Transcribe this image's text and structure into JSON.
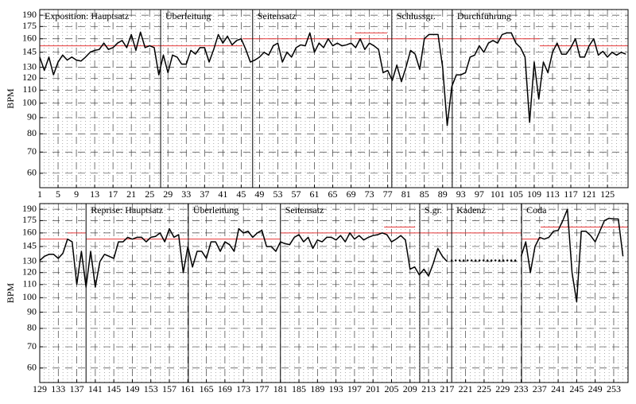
{
  "chart_data": [
    {
      "type": "line",
      "ylabel": "BPM",
      "log_scale": true,
      "grid": true,
      "xlim": [
        1,
        129.5
      ],
      "ylim": [
        54,
        198
      ],
      "xticks": [
        1,
        5,
        9,
        13,
        17,
        21,
        25,
        29,
        33,
        37,
        41,
        45,
        49,
        53,
        57,
        61,
        65,
        69,
        73,
        77,
        81,
        85,
        89,
        93,
        97,
        101,
        105,
        109,
        113,
        117,
        121,
        125
      ],
      "yticks": [
        60,
        70,
        80,
        90,
        100,
        110,
        120,
        130,
        145,
        160,
        175,
        190
      ],
      "sections": [
        {
          "label": "Exposition: Hauptsatz",
          "x": 1
        },
        {
          "label": "Überleitung",
          "x": 27.4
        },
        {
          "label": "Seitensatz",
          "x": 47.5
        },
        {
          "label": "Schlussgr.",
          "x": 77.9
        },
        {
          "label": "Durchführung",
          "x": 91.1
        }
      ],
      "reference_lines": {
        "color": "#e8393a",
        "segments": [
          {
            "x": [
              1,
              45.3
            ],
            "value": 152
          },
          {
            "x": [
              45.3,
              77.9
            ],
            "value": 160
          },
          {
            "x": [
              69.9,
              76.9
            ],
            "value": 167
          },
          {
            "x": [
              77.9,
              110.2
            ],
            "value": 160
          },
          {
            "x": [
              110.2,
              129.5
            ],
            "value": 152
          }
        ]
      },
      "series": [
        {
          "color": "#000000",
          "style": "solid",
          "x": [
            1,
            2,
            3,
            4,
            5,
            6,
            7,
            8,
            9,
            10,
            11,
            12,
            13,
            14,
            15,
            16,
            17,
            18,
            19,
            20,
            21,
            22,
            23,
            24,
            25,
            26,
            27,
            28,
            29,
            30,
            31,
            32,
            33,
            34,
            35,
            36,
            37,
            38,
            39,
            40,
            41,
            42,
            43,
            44,
            45,
            46,
            47,
            48,
            49,
            50,
            51,
            52,
            53,
            54,
            55,
            56,
            57,
            58,
            59,
            60,
            61,
            62,
            63,
            64,
            65,
            66,
            67,
            68,
            69,
            70,
            71,
            72,
            73,
            74,
            75,
            76,
            77,
            78,
            79,
            80,
            81,
            82,
            83,
            84,
            85,
            86,
            87,
            88,
            89,
            90,
            91,
            92,
            93,
            94,
            95,
            96,
            97,
            98,
            99,
            100,
            101,
            102,
            103,
            104,
            105,
            106,
            107,
            108,
            109,
            110,
            111,
            112,
            113,
            114,
            115,
            116,
            117,
            118,
            119,
            120,
            121,
            122,
            123,
            124,
            125,
            126,
            127,
            128,
            129
          ],
          "values": [
            140,
            127,
            140,
            123,
            135,
            142,
            137,
            140,
            137,
            136,
            140,
            145,
            147,
            148,
            155,
            148,
            150,
            155,
            158,
            150,
            165,
            147,
            168,
            150,
            152,
            150,
            123,
            142,
            125,
            142,
            140,
            133,
            133,
            147,
            143,
            150,
            150,
            135,
            148,
            165,
            155,
            163,
            153,
            158,
            160,
            148,
            135,
            137,
            140,
            145,
            142,
            152,
            155,
            135,
            145,
            140,
            150,
            153,
            152,
            167,
            145,
            155,
            150,
            160,
            152,
            155,
            152,
            153,
            155,
            150,
            160,
            148,
            155,
            152,
            148,
            125,
            127,
            118,
            132,
            117,
            130,
            147,
            143,
            128,
            160,
            165,
            165,
            165,
            130,
            85,
            113,
            123,
            123,
            125,
            140,
            142,
            152,
            145,
            155,
            158,
            155,
            165,
            167,
            167,
            155,
            150,
            140,
            87,
            135,
            103,
            135,
            125,
            145,
            155,
            143,
            143,
            150,
            160,
            140,
            140,
            152,
            160,
            142,
            146,
            140,
            145,
            142,
            145,
            143
          ]
        }
      ]
    },
    {
      "type": "line",
      "ylabel": "BPM",
      "log_scale": true,
      "grid": true,
      "xlim": [
        129,
        256.1
      ],
      "ylim": [
        54,
        198
      ],
      "xticks": [
        129,
        133,
        137,
        141,
        145,
        149,
        153,
        157,
        161,
        165,
        169,
        173,
        177,
        181,
        185,
        189,
        193,
        197,
        201,
        205,
        209,
        213,
        217,
        221,
        225,
        229,
        233,
        237,
        241,
        245,
        249,
        253
      ],
      "yticks": [
        60,
        70,
        80,
        90,
        100,
        110,
        120,
        130,
        145,
        160,
        175,
        190
      ],
      "sections": [
        {
          "label": "Reprise: Hauptsatz",
          "x": 139
        },
        {
          "label": "Überleitung",
          "x": 161.1
        },
        {
          "label": "Seitensatz",
          "x": 181
        },
        {
          "label": "S.gr.",
          "x": 211.1
        },
        {
          "label": "Kadenz",
          "x": 218
        },
        {
          "label": "Coda",
          "x": 233.1
        }
      ],
      "reference_lines": {
        "color": "#e8393a",
        "segments": [
          {
            "x": [
              129,
              135
            ],
            "value": 153
          },
          {
            "x": [
              135,
              139
            ],
            "value": 160
          },
          {
            "x": [
              139,
              181
            ],
            "value": 153
          },
          {
            "x": [
              181,
              211.1
            ],
            "value": 160
          },
          {
            "x": [
              203.4,
              210.1
            ],
            "value": 167
          },
          {
            "x": [
              211.1,
              233.1
            ],
            "value": 160
          },
          {
            "x": [
              233.1,
              237.2
            ],
            "value": 153
          },
          {
            "x": [
              237.2,
              256.1
            ],
            "value": 167
          }
        ]
      },
      "series": [
        {
          "color": "#000000",
          "style": "solid",
          "x": [
            129,
            130,
            131,
            132,
            133,
            134,
            135,
            136,
            137,
            138,
            139,
            140,
            141,
            142,
            143,
            144,
            145,
            146,
            147,
            148,
            149,
            150,
            151,
            152,
            153,
            154,
            155,
            156,
            157,
            158,
            159,
            160,
            161,
            162,
            163,
            164,
            165,
            166,
            167,
            168,
            169,
            170,
            171,
            172,
            173,
            174,
            175,
            176,
            177,
            178,
            179,
            180,
            181,
            182,
            183,
            184,
            185,
            186,
            187,
            188,
            189,
            190,
            191,
            192,
            193,
            194,
            195,
            196,
            197,
            198,
            199,
            200,
            201,
            202,
            203,
            204,
            205,
            206,
            207,
            208,
            209,
            210,
            211,
            212,
            213,
            214,
            215,
            216,
            217,
            218,
            219,
            220,
            221,
            222,
            223,
            224,
            225,
            226,
            227,
            228,
            229,
            230,
            231,
            232,
            233,
            234,
            235,
            236,
            237,
            238,
            239,
            240,
            241,
            242,
            243,
            244,
            245,
            246,
            247,
            248,
            249,
            250,
            251,
            252,
            253,
            254,
            255
          ],
          "values": [
            131,
            135,
            137,
            137,
            133,
            138,
            153,
            150,
            110,
            140,
            108,
            140,
            108,
            130,
            137,
            135,
            133,
            150,
            150,
            155,
            153,
            155,
            155,
            150,
            155,
            156,
            160,
            150,
            165,
            155,
            158,
            120,
            145,
            125,
            140,
            140,
            133,
            150,
            150,
            140,
            150,
            147,
            140,
            165,
            160,
            162,
            155,
            160,
            163,
            145,
            145,
            140,
            150,
            148,
            147,
            155,
            158,
            150,
            155,
            143,
            152,
            150,
            155,
            155,
            152,
            157,
            150,
            160,
            153,
            157,
            152,
            155,
            157,
            158,
            160,
            158,
            150,
            153,
            157,
            152,
            123,
            125,
            118,
            123,
            117,
            128,
            143,
            135,
            130,
            null,
            null,
            null,
            null,
            null,
            null,
            null,
            null,
            null,
            null,
            null,
            null,
            null,
            null,
            null,
            135,
            150,
            120,
            145,
            155,
            153,
            155,
            162,
            163,
            175,
            190,
            120,
            97,
            162,
            162,
            157,
            150,
            162,
            175,
            178,
            177,
            177,
            135
          ]
        },
        {
          "color": "#000000",
          "style": "dotted",
          "x": [
            218,
            232
          ],
          "values": [
            131,
            131
          ]
        }
      ]
    }
  ]
}
